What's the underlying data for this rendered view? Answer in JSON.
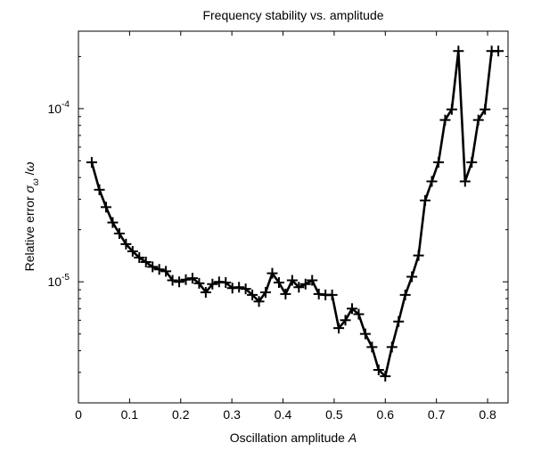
{
  "chart_data": {
    "type": "line",
    "title": "Frequency stability vs. amplitude",
    "xlabel": "Oscillation amplitude A",
    "xlabel_parts": {
      "text": "Oscillation amplitude ",
      "var": "A"
    },
    "ylabel": "Relative error σω/ω",
    "ylabel_parts": {
      "text": "Relative error ",
      "sigma": "σ",
      "sub": "ω",
      "slash": " /",
      "omega": "ω"
    },
    "y_scale": "log",
    "xlim": [
      0,
      0.84
    ],
    "ylim": [
      2e-06,
      0.00028
    ],
    "x_ticks": [
      "0",
      "0.1",
      "0.2",
      "0.3",
      "0.4",
      "0.5",
      "0.6",
      "0.7",
      "0.8"
    ],
    "y_ticks": [
      {
        "base": "10",
        "exp": "-5",
        "value": 1e-05
      },
      {
        "base": "10",
        "exp": "-4",
        "value": 0.0001
      }
    ],
    "grid": false,
    "marker": "plus",
    "line_color": "#000000",
    "series": [
      {
        "x": [
          0.026,
          0.041,
          0.054,
          0.067,
          0.08,
          0.093,
          0.106,
          0.119,
          0.132,
          0.145,
          0.158,
          0.171,
          0.184,
          0.197,
          0.21,
          0.223,
          0.236,
          0.249,
          0.262,
          0.275,
          0.288,
          0.301,
          0.314,
          0.327,
          0.34,
          0.353,
          0.366,
          0.379,
          0.392,
          0.405,
          0.418,
          0.431,
          0.444,
          0.457,
          0.47,
          0.483,
          0.496,
          0.509,
          0.522,
          0.535,
          0.548,
          0.561,
          0.574,
          0.587,
          0.6,
          0.613,
          0.626,
          0.639,
          0.652,
          0.665,
          0.678,
          0.691,
          0.704,
          0.717,
          0.73,
          0.743,
          0.756,
          0.769,
          0.782,
          0.795,
          0.808,
          0.821
        ],
        "y": [
          4.9e-05,
          3.4e-05,
          2.7e-05,
          2.2e-05,
          1.9e-05,
          1.65e-05,
          1.5e-05,
          1.38e-05,
          1.3e-05,
          1.22e-05,
          1.18e-05,
          1.15e-05,
          1.02e-05,
          1e-05,
          1.03e-05,
          1.05e-05,
          9.8e-06,
          8.7e-06,
          9.7e-06,
          1e-05,
          9.9e-06,
          9.2e-06,
          9.3e-06,
          9.1e-06,
          8.4e-06,
          7.7e-06,
          8.7e-06,
          1.12e-05,
          9.9e-06,
          8.5e-06,
          1.02e-05,
          9.3e-06,
          9.7e-06,
          1.02e-05,
          8.5e-06,
          8.4e-06,
          8.4e-06,
          5.4e-06,
          6e-06,
          7e-06,
          6.5e-06,
          5e-06,
          4.2e-06,
          3.1e-06,
          2.85e-06,
          4.2e-06,
          5.9e-06,
          8.4e-06,
          1.07e-05,
          1.42e-05,
          2.95e-05,
          3.8e-05,
          4.9e-05,
          8.6e-05,
          9.9e-05,
          0.000215,
          3.8e-05,
          4.9e-05,
          8.6e-05,
          9.9e-05,
          0.000215,
          0.000215
        ]
      }
    ]
  }
}
